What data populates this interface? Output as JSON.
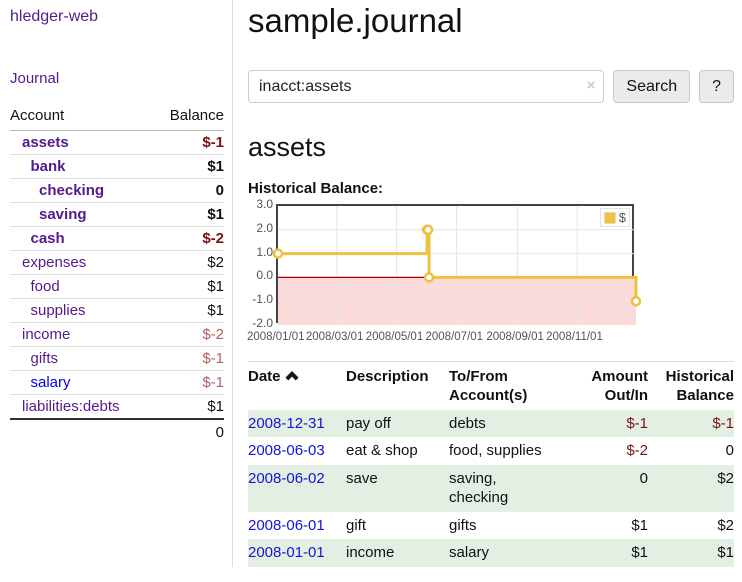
{
  "sidebar": {
    "brand": "hledger-web",
    "nav_journal": "Journal",
    "accounts_table": {
      "headers": {
        "account": "Account",
        "balance": "Balance"
      },
      "rows": [
        {
          "name": "assets",
          "depth": 1,
          "bold": true,
          "balance": "$-1",
          "neg": "neg-dark"
        },
        {
          "name": "bank",
          "depth": 2,
          "bold": true,
          "balance": "$1"
        },
        {
          "name": "checking",
          "depth": 3,
          "bold": true,
          "balance": "0"
        },
        {
          "name": "saving",
          "depth": 3,
          "bold": true,
          "balance": "$1"
        },
        {
          "name": "cash",
          "depth": 2,
          "bold": true,
          "balance": "$-2",
          "neg": "neg-dark"
        },
        {
          "name": "expenses",
          "depth": 1,
          "bold": false,
          "balance": "$2"
        },
        {
          "name": "food",
          "depth": 2,
          "bold": false,
          "balance": "$1"
        },
        {
          "name": "supplies",
          "depth": 2,
          "bold": false,
          "balance": "$1"
        },
        {
          "name": "income",
          "depth": 1,
          "bold": false,
          "balance": "$-2",
          "neg": "neg-light"
        },
        {
          "name": "gifts",
          "depth": 2,
          "bold": false,
          "balance": "$-1",
          "neg": "neg-light"
        },
        {
          "name": "salary",
          "depth": 2,
          "bold": false,
          "balance": "$-1",
          "neg": "neg-light",
          "unvisited": true
        },
        {
          "name": "liabilities:debts",
          "depth": 1,
          "bold": false,
          "balance": "$1"
        }
      ],
      "total": "0"
    }
  },
  "main": {
    "title": "sample.journal",
    "search": {
      "value": "inacct:assets",
      "clear_icon": "×",
      "button_label": "Search",
      "help_label": "?"
    },
    "account_heading": "assets",
    "chart_label": "Historical Balance:",
    "register_table": {
      "headers": {
        "date": "Date",
        "description": "Description",
        "accounts": "To/From Account(s)",
        "amount": "Amount Out/In",
        "balance": "Historical Balance"
      },
      "rows": [
        {
          "date": "2008-12-31",
          "description": "pay off",
          "accounts": "debts",
          "amount": "$-1",
          "amount_neg": true,
          "balance": "$-1",
          "balance_neg": true
        },
        {
          "date": "2008-06-03",
          "description": "eat & shop",
          "accounts": "food, supplies",
          "amount": "$-2",
          "amount_neg": true,
          "balance": "0",
          "balance_neg": false
        },
        {
          "date": "2008-06-02",
          "description": "save",
          "accounts": "saving, checking",
          "amount": "0",
          "amount_neg": false,
          "balance": "$2",
          "balance_neg": false
        },
        {
          "date": "2008-06-01",
          "description": "gift",
          "accounts": "gifts",
          "amount": "$1",
          "amount_neg": false,
          "balance": "$2",
          "balance_neg": false
        },
        {
          "date": "2008-01-01",
          "description": "income",
          "accounts": "salary",
          "amount": "$1",
          "amount_neg": false,
          "balance": "$1",
          "balance_neg": false
        }
      ]
    }
  },
  "icons": {
    "sort_ascending": "chevron-up",
    "clear_search": "multiply-x",
    "legend_swatch": "filled-yellow-square"
  },
  "chart_data": {
    "type": "line",
    "style": "steps-with-markers",
    "title": "Historical Balance:",
    "series": [
      {
        "name": "$",
        "points": [
          {
            "date": "2008-01-01",
            "value": 1
          },
          {
            "date": "2008-06-01",
            "value": 2
          },
          {
            "date": "2008-06-02",
            "value": 2
          },
          {
            "date": "2008-06-03",
            "value": 0
          },
          {
            "date": "2008-12-31",
            "value": -1
          }
        ]
      }
    ],
    "x_range": [
      "2008-01-01",
      "2008-12-31"
    ],
    "x_ticks": [
      "2008/01/01",
      "2008/03/01",
      "2008/05/01",
      "2008/07/01",
      "2008/09/01",
      "2008/11/01"
    ],
    "y_ticks": [
      "3.0",
      "2.0",
      "1.0",
      "0.0",
      "-1.0",
      "-2.0"
    ],
    "ylim": [
      -2,
      3
    ],
    "grid": true,
    "legend_position": "top-right",
    "colors": {
      "line": "#edc240",
      "marker_fill": "#ffffff",
      "negative_region": "#fbdada",
      "zero_line": "#a40000",
      "grid": "#e6e6e6",
      "border": "#434343",
      "tick_text": "#545454"
    }
  }
}
